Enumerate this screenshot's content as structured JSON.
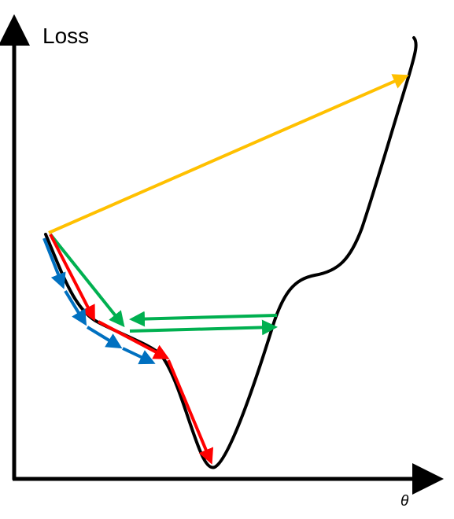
{
  "labels": {
    "y_axis": "Loss",
    "x_axis": "θ"
  },
  "colors": {
    "axis": "#000000",
    "curve": "#000000",
    "yellow": "#FFC000",
    "green": "#00B050",
    "red": "#FF0000",
    "blue": "#0070C0"
  },
  "arrow_groups": [
    {
      "name": "yellow-step",
      "color_key": "yellow",
      "steps": 1
    },
    {
      "name": "green-steps",
      "color_key": "green",
      "steps": 3
    },
    {
      "name": "red-steps",
      "color_key": "red",
      "steps": 3
    },
    {
      "name": "blue-steps",
      "color_key": "blue",
      "steps": 5
    }
  ]
}
